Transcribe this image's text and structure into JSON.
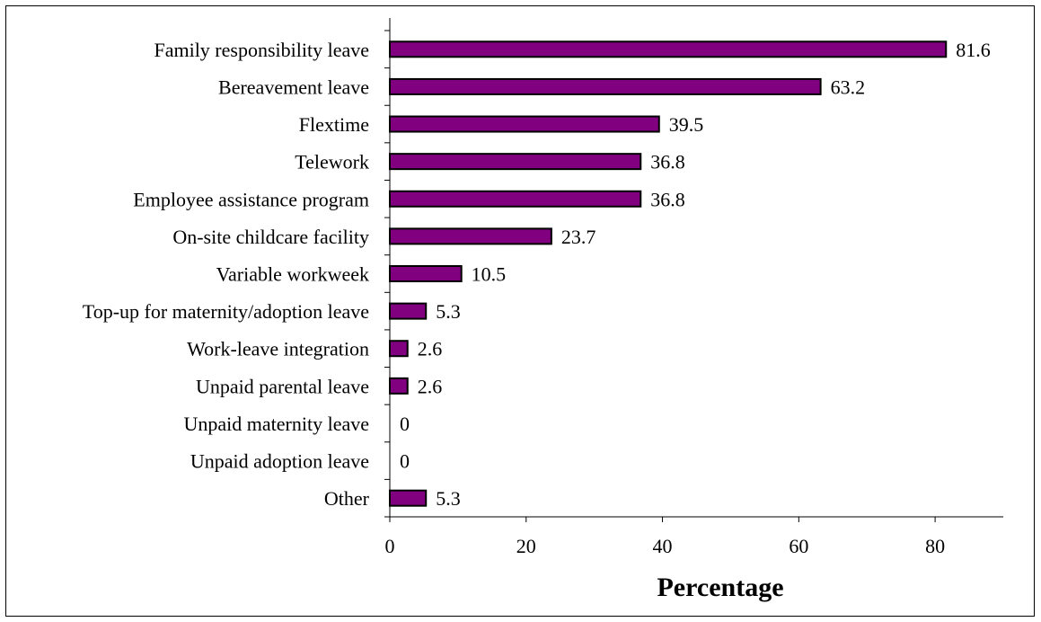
{
  "chart_data": {
    "type": "bar",
    "orientation": "horizontal",
    "categories": [
      "Family responsibility leave",
      "Bereavement leave",
      "Flextime",
      "Telework",
      "Employee assistance program",
      "On-site childcare facility",
      "Variable workweek",
      "Top-up for maternity/adoption leave",
      "Work-leave integration",
      "Unpaid parental leave",
      "Unpaid maternity leave",
      "Unpaid adoption leave",
      "Other"
    ],
    "values": [
      81.6,
      63.2,
      39.5,
      36.8,
      36.8,
      23.7,
      10.5,
      5.3,
      2.6,
      2.6,
      0,
      0,
      5.3
    ],
    "value_labels": [
      "81.6",
      "63.2",
      "39.5",
      "36.8",
      "36.8",
      "23.7",
      "10.5",
      "5.3",
      "2.6",
      "2.6",
      "0",
      "0",
      "5.3"
    ],
    "xlabel": "Percentage",
    "ylabel": "",
    "title": "",
    "xlim": [
      0,
      90
    ],
    "xticks": [
      0,
      20,
      40,
      60,
      80
    ],
    "xtick_labels": [
      "0",
      "20",
      "40",
      "60",
      "80"
    ],
    "grid": false,
    "legend": "none",
    "bar_color": "#800080",
    "bar_edge_color": "#000000"
  }
}
